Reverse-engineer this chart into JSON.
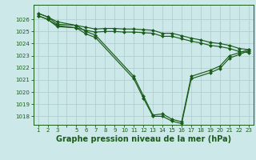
{
  "bg_color": "#cce8e8",
  "grid_color": "#aacccc",
  "line_color": "#1a5c1a",
  "marker_color": "#1a5c1a",
  "xlabel": "Graphe pression niveau de la mer (hPa)",
  "xlabel_fontsize": 7.0,
  "xtick_labels": [
    "1",
    "2",
    "3",
    "",
    "5",
    "6",
    "7",
    "8",
    "9",
    "10",
    "11",
    "12",
    "13",
    "14",
    "15",
    "16",
    "17",
    "18",
    "19",
    "20",
    "21",
    "22",
    "23"
  ],
  "xticks": [
    1,
    2,
    3,
    4,
    5,
    6,
    7,
    8,
    9,
    10,
    11,
    12,
    13,
    14,
    15,
    16,
    17,
    18,
    19,
    20,
    21,
    22,
    23
  ],
  "xlim": [
    0.5,
    23.5
  ],
  "ylim": [
    1017.3,
    1027.2
  ],
  "yticks": [
    1018,
    1019,
    1020,
    1021,
    1022,
    1023,
    1024,
    1025,
    1026
  ],
  "series": [
    {
      "x": [
        1,
        2,
        3,
        5,
        6,
        7,
        11,
        12,
        13,
        14,
        15,
        16,
        17,
        19,
        20,
        21,
        22,
        23
      ],
      "y": [
        1026.5,
        1026.2,
        1025.8,
        1025.5,
        1025.0,
        1024.7,
        1021.3,
        1019.7,
        1018.1,
        1018.2,
        1017.75,
        1017.55,
        1021.3,
        1021.8,
        1022.15,
        1023.0,
        1023.25,
        1023.5
      ]
    },
    {
      "x": [
        1,
        2,
        3,
        5,
        6,
        7,
        8,
        9,
        10,
        11,
        12,
        13,
        14,
        15,
        16,
        17,
        18,
        19,
        20,
        21,
        22,
        23
      ],
      "y": [
        1026.5,
        1026.2,
        1025.6,
        1025.5,
        1025.35,
        1025.2,
        1025.25,
        1025.25,
        1025.2,
        1025.2,
        1025.15,
        1025.1,
        1024.85,
        1024.85,
        1024.65,
        1024.45,
        1024.3,
        1024.1,
        1024.0,
        1023.85,
        1023.6,
        1023.5
      ]
    },
    {
      "x": [
        1,
        2,
        3,
        5,
        6,
        7,
        11,
        12,
        13,
        14,
        15,
        16,
        17,
        19,
        20,
        21,
        22,
        23
      ],
      "y": [
        1026.3,
        1026.0,
        1025.5,
        1025.3,
        1024.8,
        1024.5,
        1021.1,
        1019.5,
        1018.0,
        1018.0,
        1017.6,
        1017.4,
        1021.1,
        1021.6,
        1021.95,
        1022.8,
        1023.1,
        1023.4
      ]
    },
    {
      "x": [
        1,
        2,
        3,
        5,
        6,
        7,
        8,
        9,
        10,
        11,
        12,
        13,
        14,
        15,
        16,
        17,
        18,
        19,
        20,
        21,
        22,
        23
      ],
      "y": [
        1026.3,
        1026.0,
        1025.4,
        1025.3,
        1025.1,
        1024.95,
        1025.0,
        1025.0,
        1024.95,
        1024.95,
        1024.9,
        1024.85,
        1024.6,
        1024.6,
        1024.4,
        1024.2,
        1024.05,
        1023.85,
        1023.75,
        1023.6,
        1023.35,
        1023.25
      ]
    }
  ]
}
